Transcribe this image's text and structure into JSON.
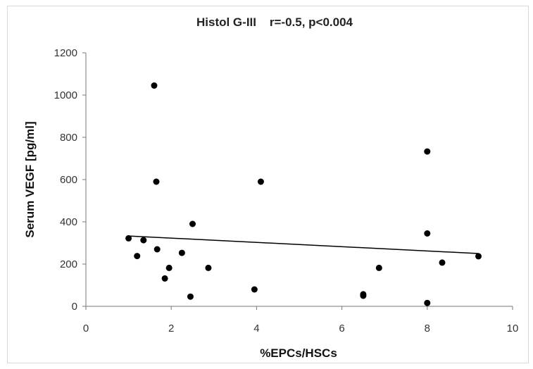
{
  "chart_data": {
    "type": "scatter",
    "title": "Histol G-III    r=-0.5, p<0.004",
    "xlabel": "%EPCs/HSCs",
    "ylabel": "Serum VEGF [pg/ml]",
    "xlim": [
      0,
      10
    ],
    "ylim": [
      0,
      1200
    ],
    "x_ticks": [
      "0",
      "2",
      "4",
      "6",
      "8",
      "10"
    ],
    "y_ticks": [
      "0",
      "200",
      "400",
      "600",
      "800",
      "1000",
      "1200"
    ],
    "grid": false,
    "legend": "none",
    "point_color": "#000000",
    "line_color": "#000000",
    "trendline": {
      "x": [
        1.0,
        9.2
      ],
      "y": [
        333,
        250
      ]
    },
    "points": [
      {
        "x": 1.0,
        "y": 322
      },
      {
        "x": 1.2,
        "y": 238
      },
      {
        "x": 1.35,
        "y": 313
      },
      {
        "x": 1.6,
        "y": 1045
      },
      {
        "x": 1.65,
        "y": 590
      },
      {
        "x": 1.67,
        "y": 270
      },
      {
        "x": 1.85,
        "y": 132
      },
      {
        "x": 1.95,
        "y": 182
      },
      {
        "x": 2.25,
        "y": 253
      },
      {
        "x": 2.45,
        "y": 46
      },
      {
        "x": 2.5,
        "y": 390
      },
      {
        "x": 2.87,
        "y": 182
      },
      {
        "x": 3.95,
        "y": 80
      },
      {
        "x": 4.1,
        "y": 590
      },
      {
        "x": 6.5,
        "y": 57
      },
      {
        "x": 6.5,
        "y": 50
      },
      {
        "x": 6.87,
        "y": 182
      },
      {
        "x": 8.0,
        "y": 733
      },
      {
        "x": 8.0,
        "y": 345
      },
      {
        "x": 8.0,
        "y": 16
      },
      {
        "x": 8.35,
        "y": 207
      },
      {
        "x": 9.2,
        "y": 237
      }
    ]
  }
}
